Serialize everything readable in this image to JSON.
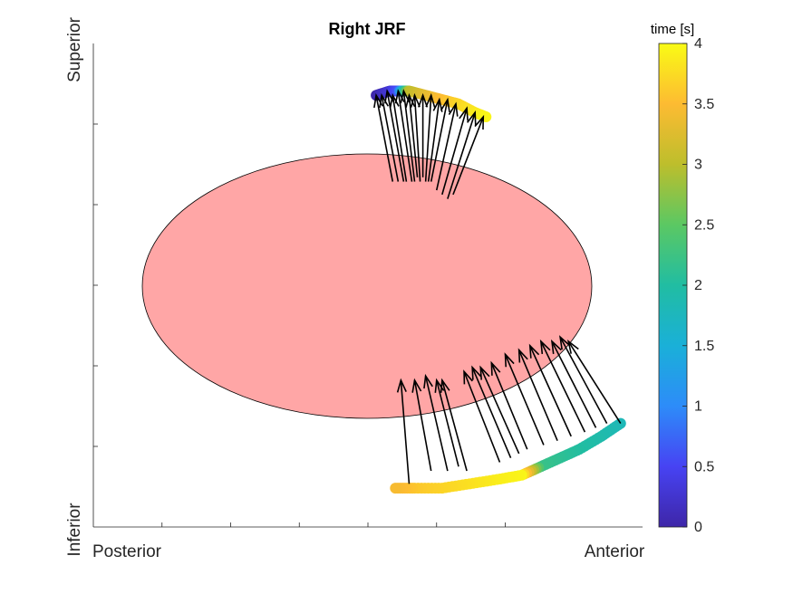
{
  "chart_data": {
    "type": "scatter",
    "title": "Right JRF",
    "xlabel": "",
    "ylabel": "",
    "x_end_labels": [
      "Posterior",
      "Anterior"
    ],
    "y_end_labels": [
      "Inferior",
      "Superior"
    ],
    "grid": false,
    "colorbar": {
      "label": "time [s]",
      "range": [
        0,
        4
      ],
      "tick_labels": [
        "0",
        "0.5",
        "1",
        "1.5",
        "2",
        "2.5",
        "3",
        "3.5",
        "4"
      ],
      "colormap": [
        "#3E26A8",
        "#4743F3",
        "#2D8CF9",
        "#1AB0D8",
        "#21BDA2",
        "#5BC863",
        "#BDBE2C",
        "#FDBB32",
        "#F9FB15"
      ]
    },
    "ellipse_color": "#FFA6A6",
    "arrow_color": "#000000",
    "series": [
      {
        "points": [
          {
            "t": 0.0,
            "x": 0.48,
            "y": 0.92
          },
          {
            "t": 0.3,
            "x": 0.53,
            "y": 0.93
          },
          {
            "t": 0.6,
            "x": 0.56,
            "y": 0.93
          },
          {
            "t": 3.0,
            "x": 0.6,
            "y": 0.93
          },
          {
            "t": 3.3,
            "x": 0.66,
            "y": 0.92
          },
          {
            "t": 3.5,
            "x": 0.72,
            "y": 0.91
          },
          {
            "t": 3.7,
            "x": 0.78,
            "y": 0.9
          },
          {
            "t": 3.85,
            "x": 0.84,
            "y": 0.88
          },
          {
            "t": 3.95,
            "x": 0.88,
            "y": 0.87
          }
        ]
      },
      {
        "points": [
          {
            "t": 1.8,
            "x": 1.37,
            "y": 0.16
          },
          {
            "t": 1.9,
            "x": 1.3,
            "y": 0.13
          },
          {
            "t": 2.0,
            "x": 1.22,
            "y": 0.1
          },
          {
            "t": 2.1,
            "x": 1.15,
            "y": 0.08
          },
          {
            "t": 2.2,
            "x": 1.08,
            "y": 0.06
          },
          {
            "t": 3.95,
            "x": 1.01,
            "y": 0.04
          },
          {
            "t": 3.9,
            "x": 0.92,
            "y": 0.03
          },
          {
            "t": 3.8,
            "x": 0.82,
            "y": 0.02
          },
          {
            "t": 3.7,
            "x": 0.72,
            "y": 0.01
          },
          {
            "t": 3.6,
            "x": 0.62,
            "y": 0.01
          },
          {
            "t": 3.45,
            "x": 0.55,
            "y": 0.01
          }
        ]
      }
    ],
    "arrows": [
      {
        "from": [
          0.48,
          0.92
        ],
        "to": [
          0.54,
          0.72
        ]
      },
      {
        "from": [
          0.5,
          0.92
        ],
        "to": [
          0.56,
          0.72
        ]
      },
      {
        "from": [
          0.52,
          0.93
        ],
        "to": [
          0.58,
          0.72
        ]
      },
      {
        "from": [
          0.54,
          0.92
        ],
        "to": [
          0.59,
          0.72
        ]
      },
      {
        "from": [
          0.56,
          0.93
        ],
        "to": [
          0.61,
          0.72
        ]
      },
      {
        "from": [
          0.58,
          0.93
        ],
        "to": [
          0.62,
          0.72
        ]
      },
      {
        "from": [
          0.6,
          0.92
        ],
        "to": [
          0.63,
          0.73
        ]
      },
      {
        "from": [
          0.62,
          0.92
        ],
        "to": [
          0.64,
          0.72
        ]
      },
      {
        "from": [
          0.65,
          0.92
        ],
        "to": [
          0.65,
          0.73
        ]
      },
      {
        "from": [
          0.68,
          0.92
        ],
        "to": [
          0.66,
          0.72
        ]
      },
      {
        "from": [
          0.71,
          0.91
        ],
        "to": [
          0.67,
          0.72
        ]
      },
      {
        "from": [
          0.74,
          0.91
        ],
        "to": [
          0.68,
          0.72
        ]
      },
      {
        "from": [
          0.77,
          0.9
        ],
        "to": [
          0.7,
          0.7
        ]
      },
      {
        "from": [
          0.81,
          0.89
        ],
        "to": [
          0.72,
          0.69
        ]
      },
      {
        "from": [
          0.84,
          0.88
        ],
        "to": [
          0.74,
          0.68
        ]
      },
      {
        "from": [
          0.87,
          0.87
        ],
        "to": [
          0.76,
          0.69
        ]
      },
      {
        "from": [
          0.57,
          0.26
        ],
        "to": [
          0.6,
          0.02
        ]
      },
      {
        "from": [
          0.62,
          0.26
        ],
        "to": [
          0.68,
          0.05
        ]
      },
      {
        "from": [
          0.66,
          0.27
        ],
        "to": [
          0.74,
          0.05
        ]
      },
      {
        "from": [
          0.7,
          0.26
        ],
        "to": [
          0.78,
          0.06
        ]
      },
      {
        "from": [
          0.72,
          0.26
        ],
        "to": [
          0.81,
          0.05
        ]
      },
      {
        "from": [
          0.8,
          0.28
        ],
        "to": [
          0.93,
          0.07
        ]
      },
      {
        "from": [
          0.83,
          0.29
        ],
        "to": [
          0.97,
          0.08
        ]
      },
      {
        "from": [
          0.86,
          0.29
        ],
        "to": [
          1.0,
          0.09
        ]
      },
      {
        "from": [
          0.9,
          0.3
        ],
        "to": [
          1.03,
          0.1
        ]
      },
      {
        "from": [
          0.95,
          0.32
        ],
        "to": [
          1.09,
          0.11
        ]
      },
      {
        "from": [
          1.0,
          0.33
        ],
        "to": [
          1.14,
          0.12
        ]
      },
      {
        "from": [
          1.04,
          0.34
        ],
        "to": [
          1.19,
          0.13
        ]
      },
      {
        "from": [
          1.08,
          0.35
        ],
        "to": [
          1.24,
          0.14
        ]
      },
      {
        "from": [
          1.12,
          0.35
        ],
        "to": [
          1.28,
          0.15
        ]
      },
      {
        "from": [
          1.15,
          0.36
        ],
        "to": [
          1.32,
          0.16
        ]
      },
      {
        "from": [
          1.18,
          0.35
        ],
        "to": [
          1.37,
          0.16
        ]
      }
    ]
  }
}
